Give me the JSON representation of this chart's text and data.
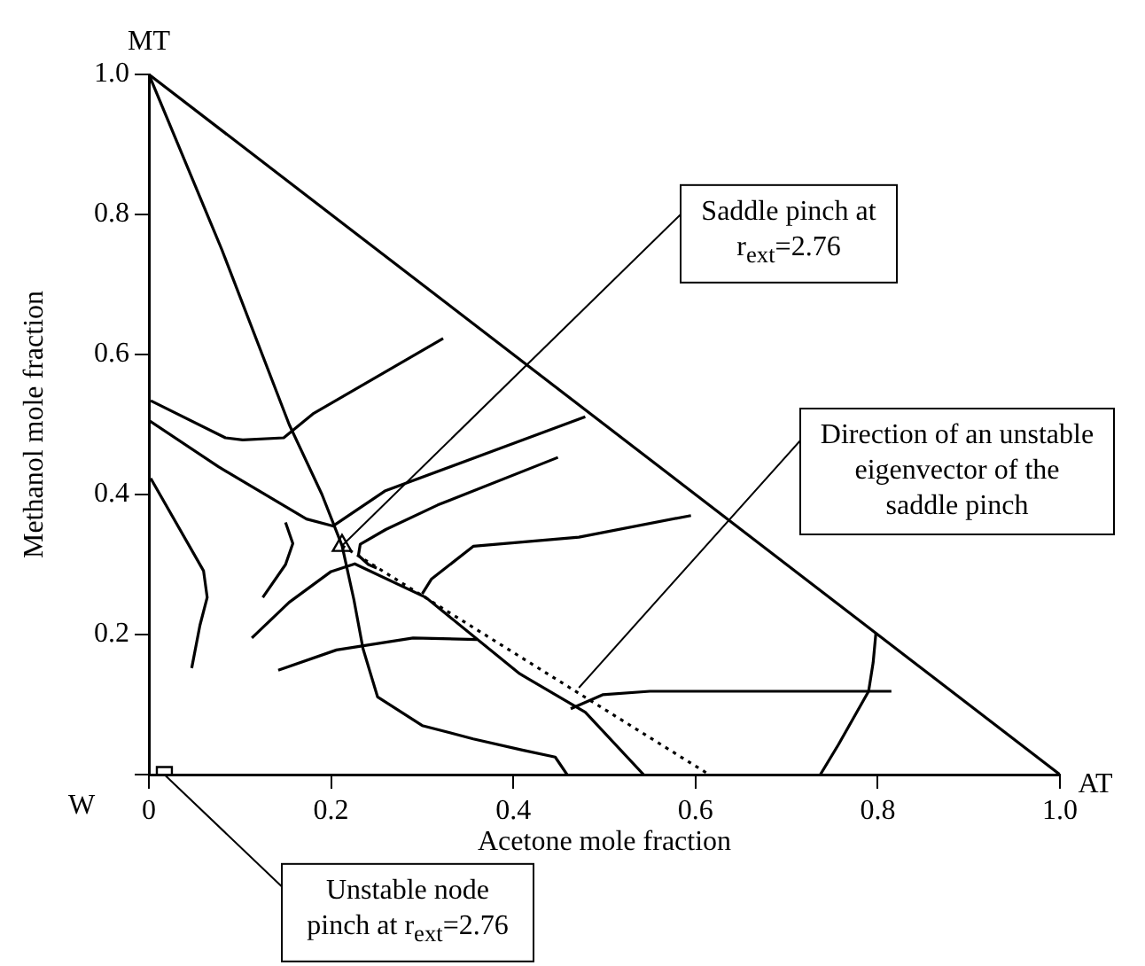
{
  "chart_data": {
    "type": "line",
    "xlabel": "Acetone mole fraction",
    "ylabel": "Methanol mole fraction",
    "xlim": [
      0,
      1
    ],
    "ylim": [
      0,
      1
    ],
    "xticks": [
      {
        "value": 0,
        "label": "0"
      },
      0.2,
      0.4,
      0.6,
      0.8,
      {
        "value": 1,
        "label": "1.0"
      }
    ],
    "yticks": [
      {
        "value": 0,
        "label": null
      },
      0.2,
      0.4,
      0.6,
      0.8,
      {
        "value": 1,
        "label": "1.0"
      }
    ],
    "grid": false,
    "legend": false,
    "marker": "none",
    "series": [
      {
        "color": "#000000",
        "x": [
          0,
          1
        ],
        "values": [
          1,
          0
        ]
      },
      {
        "color": "#000000",
        "x": [
          0,
          0.08,
          0.154,
          0.19,
          0.212,
          0.225,
          0.235,
          0.251,
          0.3,
          0.356,
          0.41,
          0.446,
          0.459
        ],
        "values": [
          1,
          0.75,
          0.5,
          0.4,
          0.327,
          0.25,
          0.18,
          0.111,
          0.07,
          0.051,
          0.035,
          0.025,
          0
        ]
      },
      {
        "color": "#000000",
        "x": [
          0.798,
          0.795,
          0.79,
          0.757,
          0.737
        ],
        "values": [
          0.202,
          0.16,
          0.119,
          0.043,
          0
        ]
      },
      {
        "color": "#000000",
        "line_style": "dotted",
        "x": [
          0.212,
          0.615
        ],
        "values": [
          0.327,
          0
        ]
      },
      {
        "color": "#000000",
        "x": [
          0.323,
          0.181,
          0.148,
          0.103,
          0.084,
          0.002
        ],
        "values": [
          0.623,
          0.516,
          0.481,
          0.478,
          0.481,
          0.534
        ]
      },
      {
        "color": "#000000",
        "x": [
          0.479,
          0.259,
          0.202,
          0.173,
          0.076,
          0
        ],
        "values": [
          0.511,
          0.405,
          0.355,
          0.365,
          0.44,
          0.506
        ]
      },
      {
        "color": "#000000",
        "x": [
          0.449,
          0.317,
          0.26,
          0.232,
          0.23,
          0.241,
          0.25
        ],
        "values": [
          0.453,
          0.385,
          0.35,
          0.329,
          0.313,
          0.3,
          0.295
        ]
      },
      {
        "color": "#000000",
        "x": [
          0.113,
          0.154,
          0.2,
          0.226,
          0.304,
          0.407,
          0.479,
          0.543
        ],
        "values": [
          0.195,
          0.246,
          0.29,
          0.301,
          0.253,
          0.144,
          0.089,
          0
        ]
      },
      {
        "color": "#000000",
        "x": [
          0.595,
          0.472,
          0.356,
          0.31,
          0.3
        ],
        "values": [
          0.37,
          0.339,
          0.326,
          0.279,
          0.258
        ]
      },
      {
        "color": "#000000",
        "x": [
          0.142,
          0.206,
          0.29,
          0.36
        ],
        "values": [
          0.149,
          0.178,
          0.195,
          0.193
        ]
      },
      {
        "color": "#000000",
        "x": [
          0.815,
          0.679,
          0.55,
          0.498,
          0.463
        ],
        "values": [
          0.119,
          0.119,
          0.119,
          0.114,
          0.094
        ]
      },
      {
        "color": "#000000",
        "x": [
          0.002,
          0.06,
          0.064,
          0.056,
          0.047
        ],
        "values": [
          0.423,
          0.291,
          0.253,
          0.213,
          0.152
        ]
      },
      {
        "color": "#000000",
        "x": [
          0.125,
          0.15,
          0.158,
          0.15
        ],
        "values": [
          0.253,
          0.3,
          0.33,
          0.36
        ]
      },
      {
        "type": "scatter",
        "marker": "triangle",
        "color": "#000000",
        "x": [
          0.212
        ],
        "values": [
          0.327
        ]
      },
      {
        "type": "scatter",
        "marker": "square",
        "color": "#000000",
        "x": [
          0.017
        ],
        "values": [
          0
        ]
      }
    ],
    "annotations": [
      {
        "text": "MT",
        "x": 0,
        "y": 1
      },
      {
        "text": "AT",
        "x": 1,
        "y": 0
      },
      {
        "text": "W",
        "x": 0,
        "y": 0
      },
      {
        "text": "Saddle pinch at r$_{ext}$=2.76",
        "x": 0.212,
        "y": 0.327
      },
      {
        "text": "Direction of an unstable eigenvector of the saddle pinch",
        "x": 0.472,
        "y": 0.124
      },
      {
        "text": "Unstable node pinch at r$_{ext}$=2.76",
        "x": 0.017,
        "y": 0
      }
    ]
  }
}
